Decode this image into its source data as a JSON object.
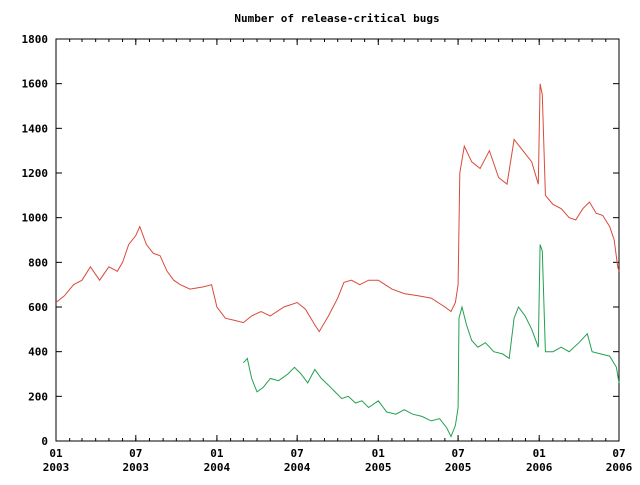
{
  "chart_data": {
    "type": "line",
    "title": "Number of release-critical bugs",
    "xlabel": "",
    "ylabel": "",
    "ylim": [
      0,
      1800
    ],
    "yticks": [
      0,
      200,
      400,
      600,
      800,
      1000,
      1200,
      1400,
      1600,
      1800
    ],
    "xlim": [
      "2003-01-01",
      "2006-07-01"
    ],
    "xticks": [
      {
        "date": "2003-01-01",
        "top": "01",
        "bottom": "2003"
      },
      {
        "date": "2003-07-01",
        "top": "07",
        "bottom": "2003"
      },
      {
        "date": "2004-01-01",
        "top": "01",
        "bottom": "2004"
      },
      {
        "date": "2004-07-01",
        "top": "07",
        "bottom": "2004"
      },
      {
        "date": "2005-01-01",
        "top": "01",
        "bottom": "2005"
      },
      {
        "date": "2005-07-01",
        "top": "07",
        "bottom": "2005"
      },
      {
        "date": "2006-01-01",
        "top": "01",
        "bottom": "2006"
      },
      {
        "date": "2006-07-01",
        "top": "07",
        "bottom": "2006"
      }
    ],
    "grid": false,
    "legend": "none",
    "series": [
      {
        "color": "#d94a3a",
        "points": [
          [
            "2003-01-01",
            620
          ],
          [
            "2003-01-20",
            650
          ],
          [
            "2003-02-10",
            700
          ],
          [
            "2003-03-01",
            720
          ],
          [
            "2003-03-20",
            780
          ],
          [
            "2003-04-10",
            720
          ],
          [
            "2003-05-01",
            780
          ],
          [
            "2003-05-20",
            760
          ],
          [
            "2003-06-01",
            800
          ],
          [
            "2003-06-15",
            880
          ],
          [
            "2003-07-01",
            920
          ],
          [
            "2003-07-10",
            960
          ],
          [
            "2003-07-25",
            880
          ],
          [
            "2003-08-10",
            840
          ],
          [
            "2003-08-25",
            830
          ],
          [
            "2003-09-10",
            760
          ],
          [
            "2003-09-25",
            720
          ],
          [
            "2003-10-10",
            700
          ],
          [
            "2003-11-01",
            680
          ],
          [
            "2003-12-01",
            690
          ],
          [
            "2003-12-20",
            700
          ],
          [
            "2004-01-01",
            600
          ],
          [
            "2004-01-20",
            550
          ],
          [
            "2004-02-10",
            540
          ],
          [
            "2004-03-01",
            530
          ],
          [
            "2004-03-20",
            560
          ],
          [
            "2004-04-10",
            580
          ],
          [
            "2004-05-01",
            560
          ],
          [
            "2004-06-01",
            600
          ],
          [
            "2004-07-01",
            620
          ],
          [
            "2004-07-20",
            590
          ],
          [
            "2004-08-10",
            520
          ],
          [
            "2004-08-20",
            490
          ],
          [
            "2004-09-10",
            560
          ],
          [
            "2004-10-01",
            640
          ],
          [
            "2004-10-15",
            710
          ],
          [
            "2004-11-01",
            720
          ],
          [
            "2004-11-20",
            700
          ],
          [
            "2004-12-10",
            720
          ],
          [
            "2005-01-01",
            720
          ],
          [
            "2005-02-01",
            680
          ],
          [
            "2005-03-01",
            660
          ],
          [
            "2005-04-01",
            650
          ],
          [
            "2005-05-01",
            640
          ],
          [
            "2005-06-01",
            600
          ],
          [
            "2005-06-15",
            580
          ],
          [
            "2005-06-25",
            620
          ],
          [
            "2005-07-01",
            700
          ],
          [
            "2005-07-05",
            1200
          ],
          [
            "2005-07-15",
            1320
          ],
          [
            "2005-08-01",
            1250
          ],
          [
            "2005-08-20",
            1220
          ],
          [
            "2005-09-10",
            1300
          ],
          [
            "2005-10-01",
            1180
          ],
          [
            "2005-10-20",
            1150
          ],
          [
            "2005-11-05",
            1350
          ],
          [
            "2005-11-25",
            1300
          ],
          [
            "2005-12-15",
            1250
          ],
          [
            "2005-12-30",
            1150
          ],
          [
            "2006-01-03",
            1600
          ],
          [
            "2006-01-08",
            1550
          ],
          [
            "2006-01-15",
            1100
          ],
          [
            "2006-02-01",
            1060
          ],
          [
            "2006-02-20",
            1040
          ],
          [
            "2006-03-10",
            1000
          ],
          [
            "2006-03-25",
            990
          ],
          [
            "2006-04-10",
            1040
          ],
          [
            "2006-04-25",
            1070
          ],
          [
            "2006-05-10",
            1020
          ],
          [
            "2006-05-25",
            1010
          ],
          [
            "2006-06-10",
            960
          ],
          [
            "2006-06-20",
            900
          ],
          [
            "2006-06-28",
            780
          ],
          [
            "2006-07-01",
            760
          ]
        ]
      },
      {
        "color": "#22a050",
        "points": [
          [
            "2004-03-01",
            350
          ],
          [
            "2004-03-10",
            370
          ],
          [
            "2004-03-20",
            280
          ],
          [
            "2004-04-01",
            220
          ],
          [
            "2004-04-15",
            240
          ],
          [
            "2004-05-01",
            280
          ],
          [
            "2004-05-20",
            270
          ],
          [
            "2004-06-10",
            300
          ],
          [
            "2004-06-25",
            330
          ],
          [
            "2004-07-10",
            300
          ],
          [
            "2004-07-25",
            260
          ],
          [
            "2004-08-10",
            320
          ],
          [
            "2004-08-25",
            280
          ],
          [
            "2004-09-10",
            250
          ],
          [
            "2004-09-25",
            220
          ],
          [
            "2004-10-10",
            190
          ],
          [
            "2004-10-25",
            200
          ],
          [
            "2004-11-10",
            170
          ],
          [
            "2004-11-25",
            180
          ],
          [
            "2004-12-10",
            150
          ],
          [
            "2005-01-01",
            180
          ],
          [
            "2005-01-20",
            130
          ],
          [
            "2005-02-10",
            120
          ],
          [
            "2005-03-01",
            140
          ],
          [
            "2005-03-20",
            120
          ],
          [
            "2005-04-10",
            110
          ],
          [
            "2005-05-01",
            90
          ],
          [
            "2005-05-20",
            100
          ],
          [
            "2005-06-05",
            60
          ],
          [
            "2005-06-15",
            20
          ],
          [
            "2005-06-25",
            70
          ],
          [
            "2005-07-01",
            150
          ],
          [
            "2005-07-03",
            550
          ],
          [
            "2005-07-10",
            600
          ],
          [
            "2005-07-20",
            520
          ],
          [
            "2005-08-01",
            450
          ],
          [
            "2005-08-15",
            420
          ],
          [
            "2005-09-01",
            440
          ],
          [
            "2005-09-20",
            400
          ],
          [
            "2005-10-10",
            390
          ],
          [
            "2005-10-25",
            370
          ],
          [
            "2005-11-05",
            550
          ],
          [
            "2005-11-15",
            600
          ],
          [
            "2005-11-30",
            560
          ],
          [
            "2005-12-15",
            500
          ],
          [
            "2005-12-30",
            420
          ],
          [
            "2006-01-03",
            880
          ],
          [
            "2006-01-08",
            850
          ],
          [
            "2006-01-15",
            400
          ],
          [
            "2006-02-01",
            400
          ],
          [
            "2006-02-20",
            420
          ],
          [
            "2006-03-10",
            400
          ],
          [
            "2006-04-01",
            440
          ],
          [
            "2006-04-20",
            480
          ],
          [
            "2006-05-01",
            400
          ],
          [
            "2006-05-20",
            390
          ],
          [
            "2006-06-10",
            380
          ],
          [
            "2006-06-25",
            330
          ],
          [
            "2006-07-01",
            260
          ]
        ]
      }
    ]
  }
}
